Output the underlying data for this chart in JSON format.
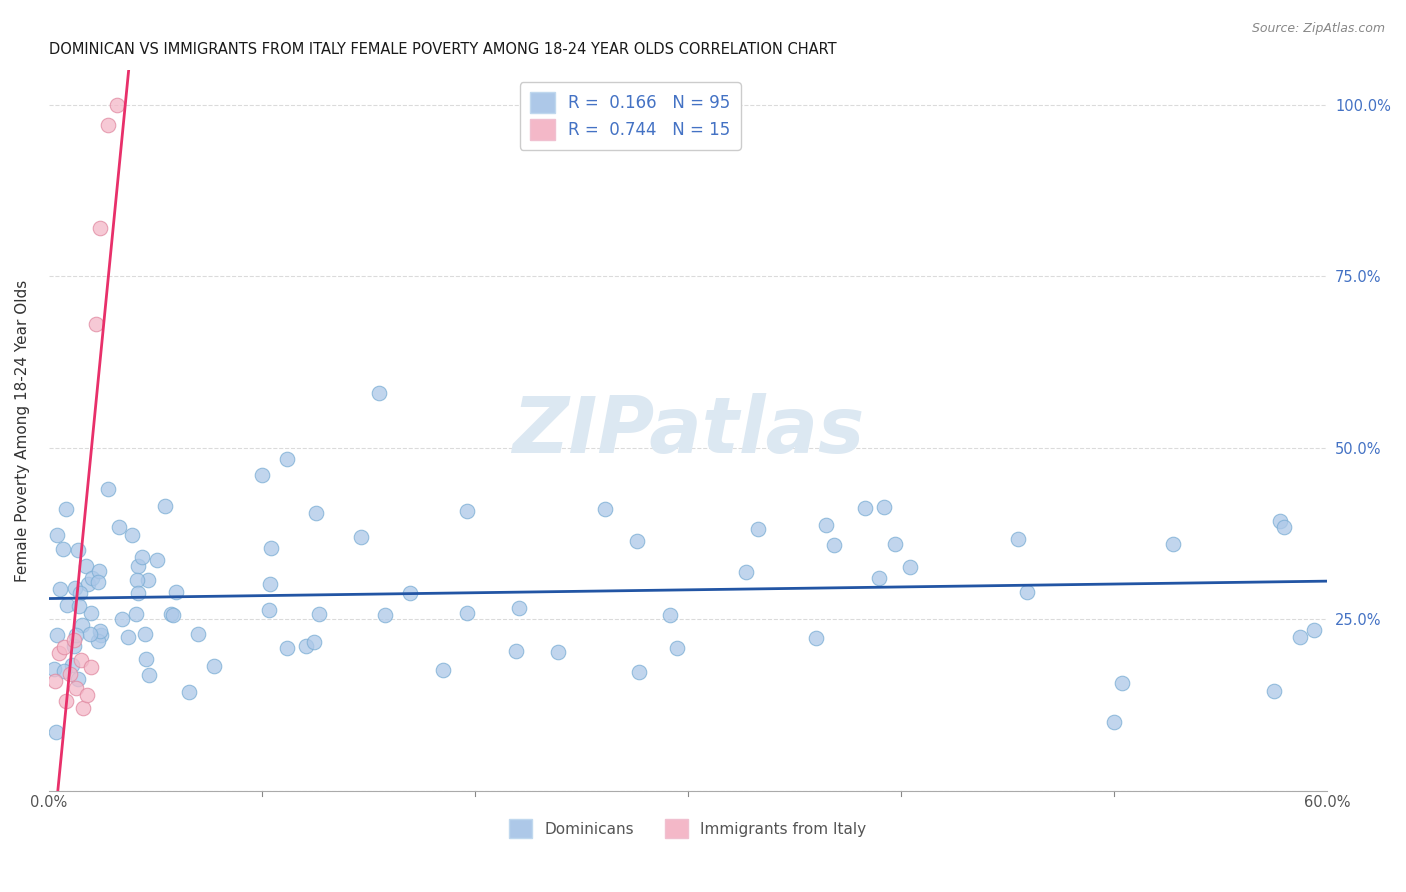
{
  "title": "DOMINICAN VS IMMIGRANTS FROM ITALY FEMALE POVERTY AMONG 18-24 YEAR OLDS CORRELATION CHART",
  "source": "Source: ZipAtlas.com",
  "ylabel": "Female Poverty Among 18-24 Year Olds",
  "xlim": [
    0.0,
    0.6
  ],
  "ylim": [
    0.0,
    1.05
  ],
  "dominican_R": 0.166,
  "dominican_N": 95,
  "italy_R": 0.744,
  "italy_N": 15,
  "dominican_color": "#adc8e8",
  "dominican_edge_color": "#7aadd4",
  "dominican_line_color": "#2255a4",
  "italy_color": "#f4b8c8",
  "italy_edge_color": "#e088a0",
  "italy_line_color": "#e8306a",
  "watermark_color": "#dce8f2",
  "right_tick_color": "#4472c4",
  "title_color": "#1a1a1a",
  "source_color": "#888888",
  "ylabel_color": "#333333",
  "grid_color": "#d8d8d8",
  "legend_text_color": "#4472c4",
  "bottom_label_color": "#555555"
}
